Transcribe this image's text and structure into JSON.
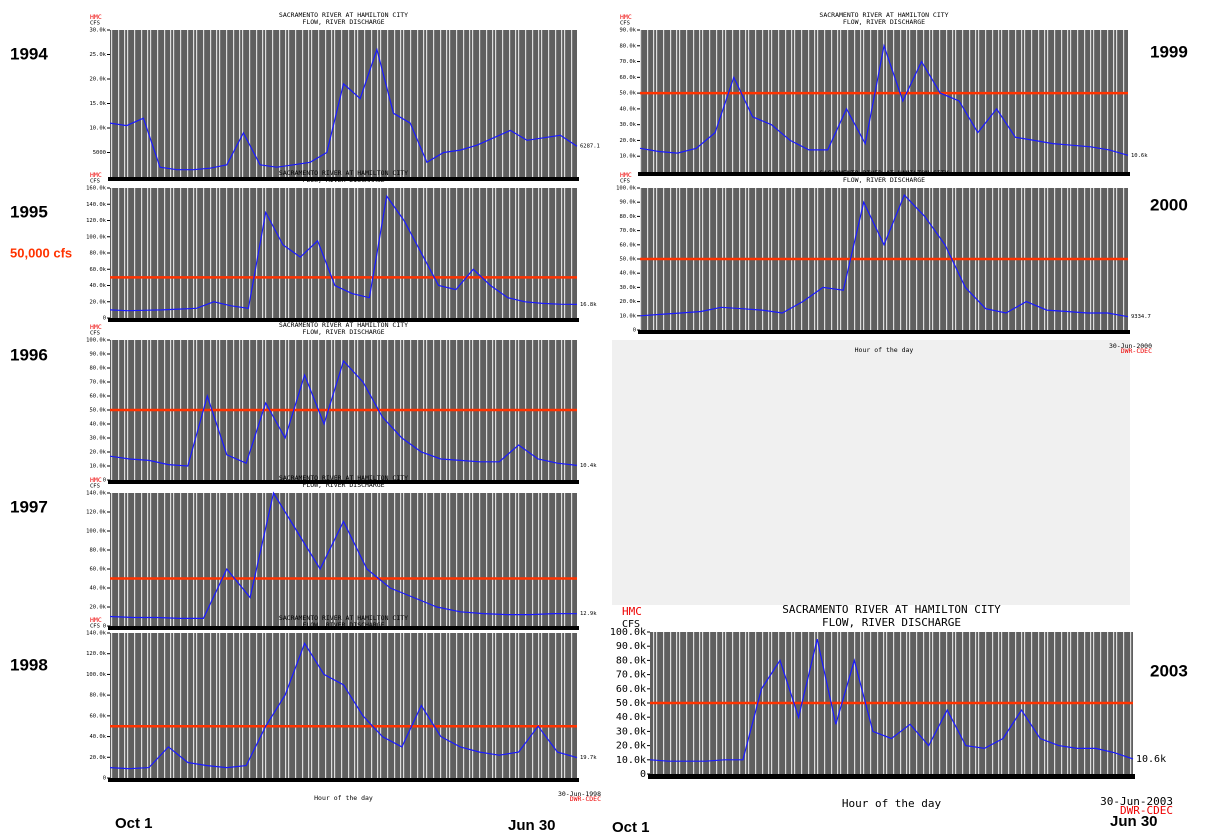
{
  "annotation": "50,000 cfs",
  "left_start": "Oct 1",
  "left_end": "Jun 30",
  "right_start": "Oct 1",
  "right_end": "Jun 30",
  "chart_data": [
    {
      "type": "line",
      "label": "1994",
      "title": "SACRAMENTO RIVER AT HAMILTON CITY",
      "subtitle": "FLOW, RIVER DISCHARGE",
      "unit_code": "HMC",
      "unit": "CFS",
      "ylim": [
        0,
        30000
      ],
      "yticks": [
        {
          "value": 5000,
          "label": "5000"
        },
        {
          "value": 10000,
          "label": "10.0k"
        },
        {
          "value": 15000,
          "label": "15.0k"
        },
        {
          "value": 20000,
          "label": "20.0k"
        },
        {
          "value": 25000,
          "label": "25.0k"
        },
        {
          "value": 30000,
          "label": "30.0k"
        }
      ],
      "series": [
        {
          "name": "Flow",
          "color": "#1a1aff",
          "values": [
            11000,
            10500,
            12000,
            2000,
            1500,
            1500,
            1800,
            2500,
            9000,
            2500,
            2000,
            2500,
            3000,
            5000,
            19000,
            16000,
            26000,
            13000,
            11000,
            3000,
            5000,
            5500,
            6500,
            8000,
            9500,
            7500,
            8000,
            8500,
            6287.1
          ]
        }
      ],
      "current_value_label": "6287.1"
    },
    {
      "type": "line",
      "label": "1995",
      "title": "SACRAMENTO RIVER AT HAMILTON CITY",
      "subtitle": "FLOW, RIVER DISCHARGE",
      "unit_code": "HMC",
      "unit": "CFS",
      "ylim": [
        0,
        160000
      ],
      "yticks": [
        0,
        {
          "value": 20000,
          "label": "20.0k"
        },
        {
          "value": 40000,
          "label": "40.0k"
        },
        {
          "value": 60000,
          "label": "60.0k"
        },
        {
          "value": 80000,
          "label": "80.0k"
        },
        {
          "value": 100000,
          "label": "100.0k"
        },
        {
          "value": 120000,
          "label": "120.0k"
        },
        {
          "value": 140000,
          "label": "140.0k"
        },
        {
          "value": 160000,
          "label": "160.0k"
        }
      ],
      "threshold": 50000,
      "threshold_color": "#ff3300",
      "series": [
        {
          "name": "Flow",
          "color": "#1a1aff",
          "values": [
            10000,
            9000,
            9500,
            10000,
            11000,
            12000,
            20000,
            15000,
            12000,
            130000,
            90000,
            75000,
            95000,
            40000,
            30000,
            25000,
            150000,
            120000,
            80000,
            40000,
            35000,
            60000,
            40000,
            25000,
            20000,
            18000,
            17000,
            16800
          ]
        }
      ],
      "current_value_label": "16.8k"
    },
    {
      "type": "line",
      "label": "1996",
      "title": "SACRAMENTO RIVER AT HAMILTON CITY",
      "subtitle": "FLOW, RIVER DISCHARGE",
      "unit_code": "HMC",
      "unit": "CFS",
      "ylim": [
        0,
        100000
      ],
      "yticks": [
        0,
        {
          "value": 10000,
          "label": "10.0k"
        },
        {
          "value": 20000,
          "label": "20.0k"
        },
        {
          "value": 30000,
          "label": "30.0k"
        },
        {
          "value": 40000,
          "label": "40.0k"
        },
        {
          "value": 50000,
          "label": "50.0k"
        },
        {
          "value": 60000,
          "label": "60.0k"
        },
        {
          "value": 70000,
          "label": "70.0k"
        },
        {
          "value": 80000,
          "label": "80.0k"
        },
        {
          "value": 90000,
          "label": "90.0k"
        },
        {
          "value": 100000,
          "label": "100.0k"
        }
      ],
      "threshold": 50000,
      "threshold_color": "#ff3300",
      "series": [
        {
          "name": "Flow",
          "color": "#1a1aff",
          "values": [
            17000,
            15000,
            14000,
            11000,
            10000,
            60000,
            18000,
            12000,
            55000,
            30000,
            75000,
            40000,
            85000,
            70000,
            45000,
            30000,
            20000,
            15000,
            14000,
            13000,
            13000,
            25000,
            15000,
            12000,
            10400
          ]
        }
      ],
      "current_value_label": "10.4k"
    },
    {
      "type": "line",
      "label": "1997",
      "title": "SACRAMENTO RIVER AT HAMILTON CITY",
      "subtitle": "FLOW, RIVER DISCHARGE",
      "unit_code": "HMC",
      "unit": "CFS",
      "ylim": [
        0,
        140000
      ],
      "yticks": [
        0,
        {
          "value": 20000,
          "label": "20.0k"
        },
        {
          "value": 40000,
          "label": "40.0k"
        },
        {
          "value": 60000,
          "label": "60.0k"
        },
        {
          "value": 80000,
          "label": "80.0k"
        },
        {
          "value": 100000,
          "label": "100.0k"
        },
        {
          "value": 120000,
          "label": "120.0k"
        },
        {
          "value": 140000,
          "label": "140.0k"
        }
      ],
      "threshold": 50000,
      "threshold_color": "#ff3300",
      "series": [
        {
          "name": "Flow",
          "color": "#1a1aff",
          "values": [
            10000,
            9000,
            9000,
            8000,
            8000,
            60000,
            30000,
            140000,
            100000,
            60000,
            110000,
            60000,
            40000,
            30000,
            20000,
            15000,
            13000,
            12000,
            12000,
            13000,
            12900
          ]
        }
      ],
      "current_value_label": "12.9k"
    },
    {
      "type": "line",
      "label": "1998",
      "title": "SACRAMENTO RIVER AT HAMILTON CITY",
      "subtitle": "FLOW, RIVER DISCHARGE",
      "unit_code": "HMC",
      "unit": "CFS",
      "ylim": [
        0,
        140000
      ],
      "yticks": [
        0,
        {
          "value": 20000,
          "label": "20.0k"
        },
        {
          "value": 40000,
          "label": "40.0k"
        },
        {
          "value": 60000,
          "label": "60.0k"
        },
        {
          "value": 80000,
          "label": "80.0k"
        },
        {
          "value": 100000,
          "label": "100.0k"
        },
        {
          "value": 120000,
          "label": "120.0k"
        },
        {
          "value": 140000,
          "label": "140.0k"
        }
      ],
      "threshold": 50000,
      "threshold_color": "#ff3300",
      "series": [
        {
          "name": "Flow",
          "color": "#1a1aff",
          "values": [
            10000,
            9000,
            10000,
            30000,
            15000,
            12000,
            10000,
            12000,
            50000,
            80000,
            130000,
            100000,
            90000,
            60000,
            40000,
            30000,
            70000,
            40000,
            30000,
            25000,
            22000,
            25000,
            50000,
            25000,
            19700
          ]
        }
      ],
      "current_value_label": "19.7k",
      "x_label": "Hour of the day",
      "date": "30-Jun-1998",
      "source": "DWR-CDEC"
    },
    {
      "type": "line",
      "label": "1999",
      "title": "SACRAMENTO RIVER AT HAMILTON CITY",
      "subtitle": "FLOW, RIVER DISCHARGE",
      "unit_code": "HMC",
      "unit": "CFS",
      "ylim": [
        0,
        90000
      ],
      "yticks": [
        {
          "value": 10000,
          "label": "10.0k"
        },
        {
          "value": 20000,
          "label": "20.0k"
        },
        {
          "value": 30000,
          "label": "30.0k"
        },
        {
          "value": 40000,
          "label": "40.0k"
        },
        {
          "value": 50000,
          "label": "50.0k"
        },
        {
          "value": 60000,
          "label": "60.0k"
        },
        {
          "value": 70000,
          "label": "70.0k"
        },
        {
          "value": 80000,
          "label": "80.0k"
        },
        {
          "value": 90000,
          "label": "90.0k"
        }
      ],
      "threshold": 50000,
      "threshold_color": "#ff3300",
      "series": [
        {
          "name": "Flow",
          "color": "#1a1aff",
          "values": [
            15000,
            13000,
            12000,
            15000,
            25000,
            60000,
            35000,
            30000,
            20000,
            14000,
            14000,
            40000,
            18000,
            80000,
            45000,
            70000,
            50000,
            45000,
            25000,
            40000,
            22000,
            20000,
            18000,
            17000,
            16000,
            14000,
            10600
          ]
        }
      ],
      "current_value_label": "10.6k"
    },
    {
      "type": "line",
      "label": "2000",
      "title": "SACRAMENTO RIVER AT HAMILTON CITY",
      "subtitle": "FLOW, RIVER DISCHARGE",
      "unit_code": "HMC",
      "unit": "CFS",
      "ylim": [
        0,
        100000
      ],
      "yticks": [
        0,
        {
          "value": 10000,
          "label": "10.0k"
        },
        {
          "value": 20000,
          "label": "20.0k"
        },
        {
          "value": 30000,
          "label": "30.0k"
        },
        {
          "value": 40000,
          "label": "40.0k"
        },
        {
          "value": 50000,
          "label": "50.0k"
        },
        {
          "value": 60000,
          "label": "60.0k"
        },
        {
          "value": 70000,
          "label": "70.0k"
        },
        {
          "value": 80000,
          "label": "80.0k"
        },
        {
          "value": 90000,
          "label": "90.0k"
        },
        {
          "value": 100000,
          "label": "100.0k"
        }
      ],
      "threshold": 50000,
      "threshold_color": "#ff3300",
      "series": [
        {
          "name": "Flow",
          "color": "#1a1aff",
          "values": [
            10000,
            11000,
            12000,
            13000,
            16000,
            15000,
            14000,
            12000,
            20000,
            30000,
            28000,
            90000,
            60000,
            95000,
            80000,
            60000,
            30000,
            15000,
            12000,
            20000,
            14000,
            13000,
            12000,
            12000,
            9334.7
          ]
        }
      ],
      "current_value_label": "9334.7",
      "x_label": "Hour of the day",
      "date": "30-Jun-2000",
      "source": "DWR-CDEC"
    },
    {
      "type": "line",
      "label": "2003",
      "title": "SACRAMENTO RIVER AT HAMILTON CITY",
      "subtitle": "FLOW, RIVER DISCHARGE",
      "unit_code": "HMC",
      "unit": "CFS",
      "ylim": [
        0,
        100000
      ],
      "yticks": [
        0,
        {
          "value": 10000,
          "label": "10.0k"
        },
        {
          "value": 20000,
          "label": "20.0k"
        },
        {
          "value": 30000,
          "label": "30.0k"
        },
        {
          "value": 40000,
          "label": "40.0k"
        },
        {
          "value": 50000,
          "label": "50.0k"
        },
        {
          "value": 60000,
          "label": "60.0k"
        },
        {
          "value": 70000,
          "label": "70.0k"
        },
        {
          "value": 80000,
          "label": "80.0k"
        },
        {
          "value": 90000,
          "label": "90.0k"
        },
        {
          "value": 100000,
          "label": "100.0k"
        }
      ],
      "threshold": 50000,
      "threshold_color": "#ff3300",
      "series": [
        {
          "name": "Flow",
          "color": "#1a1aff",
          "values": [
            10000,
            9000,
            9000,
            9000,
            10000,
            10000,
            60000,
            80000,
            40000,
            95000,
            35000,
            80000,
            30000,
            25000,
            35000,
            20000,
            45000,
            20000,
            18000,
            25000,
            45000,
            25000,
            20000,
            18000,
            18000,
            15000,
            10600
          ]
        }
      ],
      "current_value_label": "10.6k",
      "x_label": "Hour of the day",
      "date": "30-Jun-2003",
      "source": "DWR-CDEC"
    }
  ]
}
